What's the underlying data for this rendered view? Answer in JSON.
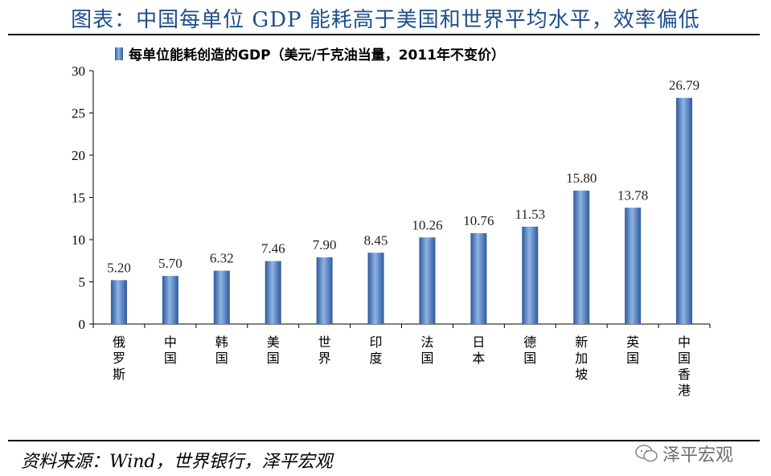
{
  "header": {
    "title": "图表：中国每单位 GDP 能耗高于美国和世界平均水平，效率偏低"
  },
  "footer": {
    "source": "资料来源：Wind，世界银行，泽平宏观",
    "watermark": "泽平宏观"
  },
  "colors": {
    "bar": "#4a7ec4",
    "bar_dark": "#2d5a9a",
    "bar_light": "#8fb4e6",
    "title": "#1f4e8a"
  },
  "chart_data": {
    "type": "bar",
    "title": "",
    "legend": "每单位能耗创造的GDP（美元/千克油当量，2011年不变价）",
    "legend_position": "top",
    "categories": [
      "俄罗斯",
      "中国",
      "韩国",
      "美国",
      "世界",
      "印度",
      "法国",
      "日本",
      "德国",
      "新加坡",
      "英国",
      "中国香港"
    ],
    "values": [
      5.2,
      5.7,
      6.32,
      7.46,
      7.9,
      8.45,
      10.26,
      10.76,
      11.53,
      15.8,
      13.78,
      26.79
    ],
    "value_labels": [
      "5.20",
      "5.70",
      "6.32",
      "7.46",
      "7.90",
      "8.45",
      "10.26",
      "10.76",
      "11.53",
      "15.80",
      "13.78",
      "26.79"
    ],
    "ylim": [
      0,
      30
    ],
    "yticks": [
      0,
      5,
      10,
      15,
      20,
      25,
      30
    ],
    "xlabel": "",
    "ylabel": "",
    "grid": false
  }
}
